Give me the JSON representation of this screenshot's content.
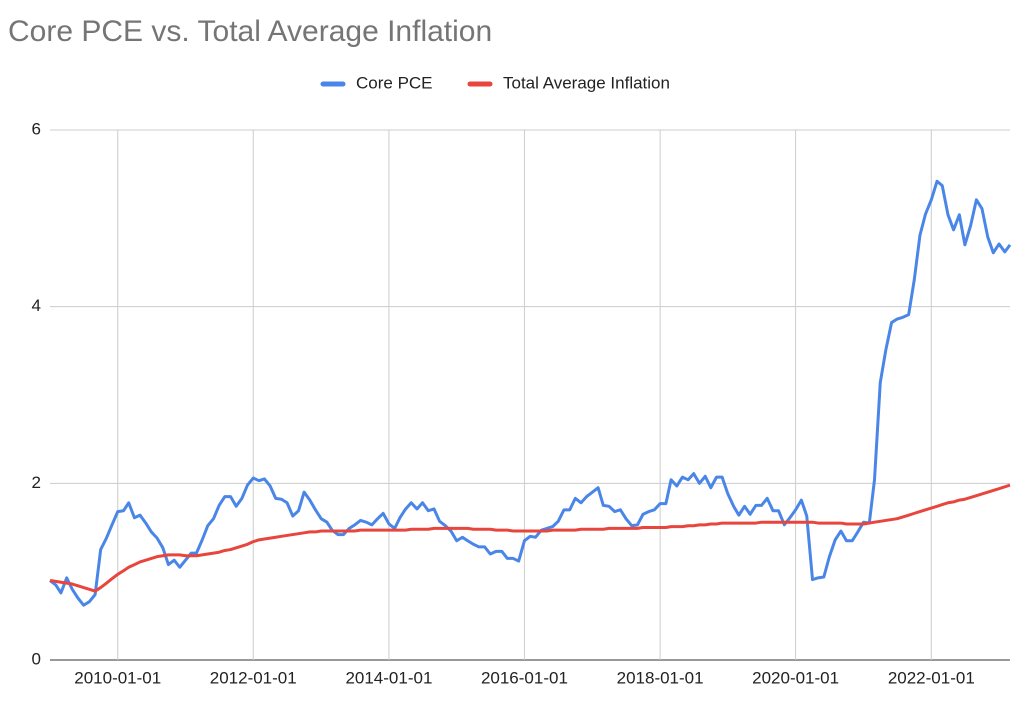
{
  "chart_data": {
    "type": "line",
    "title": "Core PCE vs. Total Average Inflation",
    "x": [
      "2009-01-01",
      "2009-02-01",
      "2009-03-01",
      "2009-04-01",
      "2009-05-01",
      "2009-06-01",
      "2009-07-01",
      "2009-08-01",
      "2009-09-01",
      "2009-10-01",
      "2009-11-01",
      "2009-12-01",
      "2010-01-01",
      "2010-02-01",
      "2010-03-01",
      "2010-04-01",
      "2010-05-01",
      "2010-06-01",
      "2010-07-01",
      "2010-08-01",
      "2010-09-01",
      "2010-10-01",
      "2010-11-01",
      "2010-12-01",
      "2011-01-01",
      "2011-02-01",
      "2011-03-01",
      "2011-04-01",
      "2011-05-01",
      "2011-06-01",
      "2011-07-01",
      "2011-08-01",
      "2011-09-01",
      "2011-10-01",
      "2011-11-01",
      "2011-12-01",
      "2012-01-01",
      "2012-02-01",
      "2012-03-01",
      "2012-04-01",
      "2012-05-01",
      "2012-06-01",
      "2012-07-01",
      "2012-08-01",
      "2012-09-01",
      "2012-10-01",
      "2012-11-01",
      "2012-12-01",
      "2013-01-01",
      "2013-02-01",
      "2013-03-01",
      "2013-04-01",
      "2013-05-01",
      "2013-06-01",
      "2013-07-01",
      "2013-08-01",
      "2013-09-01",
      "2013-10-01",
      "2013-11-01",
      "2013-12-01",
      "2014-01-01",
      "2014-02-01",
      "2014-03-01",
      "2014-04-01",
      "2014-05-01",
      "2014-06-01",
      "2014-07-01",
      "2014-08-01",
      "2014-09-01",
      "2014-10-01",
      "2014-11-01",
      "2014-12-01",
      "2015-01-01",
      "2015-02-01",
      "2015-03-01",
      "2015-04-01",
      "2015-05-01",
      "2015-06-01",
      "2015-07-01",
      "2015-08-01",
      "2015-09-01",
      "2015-10-01",
      "2015-11-01",
      "2015-12-01",
      "2016-01-01",
      "2016-02-01",
      "2016-03-01",
      "2016-04-01",
      "2016-05-01",
      "2016-06-01",
      "2016-07-01",
      "2016-08-01",
      "2016-09-01",
      "2016-10-01",
      "2016-11-01",
      "2016-12-01",
      "2017-01-01",
      "2017-02-01",
      "2017-03-01",
      "2017-04-01",
      "2017-05-01",
      "2017-06-01",
      "2017-07-01",
      "2017-08-01",
      "2017-09-01",
      "2017-10-01",
      "2017-11-01",
      "2017-12-01",
      "2018-01-01",
      "2018-02-01",
      "2018-03-01",
      "2018-04-01",
      "2018-05-01",
      "2018-06-01",
      "2018-07-01",
      "2018-08-01",
      "2018-09-01",
      "2018-10-01",
      "2018-11-01",
      "2018-12-01",
      "2019-01-01",
      "2019-02-01",
      "2019-03-01",
      "2019-04-01",
      "2019-05-01",
      "2019-06-01",
      "2019-07-01",
      "2019-08-01",
      "2019-09-01",
      "2019-10-01",
      "2019-11-01",
      "2019-12-01",
      "2020-01-01",
      "2020-02-01",
      "2020-03-01",
      "2020-04-01",
      "2020-05-01",
      "2020-06-01",
      "2020-07-01",
      "2020-08-01",
      "2020-09-01",
      "2020-10-01",
      "2020-11-01",
      "2020-12-01",
      "2021-01-01",
      "2021-02-01",
      "2021-03-01",
      "2021-04-01",
      "2021-05-01",
      "2021-06-01",
      "2021-07-01",
      "2021-08-01",
      "2021-09-01",
      "2021-10-01",
      "2021-11-01",
      "2021-12-01",
      "2022-01-01",
      "2022-02-01",
      "2022-03-01",
      "2022-04-01",
      "2022-05-01",
      "2022-06-01",
      "2022-07-01",
      "2022-08-01",
      "2022-09-01",
      "2022-10-01",
      "2022-11-01",
      "2022-12-01",
      "2023-01-01",
      "2023-02-01",
      "2023-03-01"
    ],
    "series": [
      {
        "name": "Core PCE",
        "color": "#4a86e8",
        "values": [
          0.9,
          0.85,
          0.76,
          0.93,
          0.8,
          0.7,
          0.62,
          0.66,
          0.74,
          1.25,
          1.38,
          1.53,
          1.68,
          1.69,
          1.78,
          1.61,
          1.64,
          1.55,
          1.45,
          1.38,
          1.27,
          1.08,
          1.13,
          1.05,
          1.13,
          1.21,
          1.21,
          1.36,
          1.52,
          1.6,
          1.75,
          1.85,
          1.85,
          1.74,
          1.83,
          1.98,
          2.06,
          2.03,
          2.05,
          1.97,
          1.83,
          1.82,
          1.78,
          1.63,
          1.69,
          1.9,
          1.81,
          1.7,
          1.6,
          1.56,
          1.47,
          1.42,
          1.42,
          1.49,
          1.53,
          1.58,
          1.56,
          1.53,
          1.6,
          1.66,
          1.54,
          1.49,
          1.61,
          1.71,
          1.78,
          1.71,
          1.78,
          1.69,
          1.71,
          1.57,
          1.52,
          1.46,
          1.35,
          1.39,
          1.35,
          1.31,
          1.28,
          1.28,
          1.2,
          1.23,
          1.23,
          1.15,
          1.15,
          1.12,
          1.35,
          1.4,
          1.39,
          1.47,
          1.49,
          1.51,
          1.57,
          1.7,
          1.7,
          1.83,
          1.78,
          1.85,
          1.9,
          1.95,
          1.75,
          1.74,
          1.68,
          1.7,
          1.6,
          1.52,
          1.53,
          1.65,
          1.68,
          1.7,
          1.77,
          1.77,
          2.04,
          1.97,
          2.07,
          2.04,
          2.11,
          2.0,
          2.08,
          1.95,
          2.07,
          2.07,
          1.88,
          1.74,
          1.64,
          1.74,
          1.65,
          1.75,
          1.75,
          1.83,
          1.69,
          1.69,
          1.53,
          1.61,
          1.7,
          1.81,
          1.63,
          0.91,
          0.93,
          0.94,
          1.17,
          1.36,
          1.46,
          1.35,
          1.35,
          1.45,
          1.56,
          1.55,
          2.04,
          3.14,
          3.51,
          3.82,
          3.86,
          3.88,
          3.91,
          4.3,
          4.81,
          5.05,
          5.21,
          5.42,
          5.37,
          5.04,
          4.87,
          5.04,
          4.7,
          4.92,
          5.21,
          5.11,
          4.79,
          4.61,
          4.71,
          4.62,
          4.7
        ]
      },
      {
        "name": "Total Average Inflation",
        "color": "#e8453c",
        "values": [
          0.9,
          0.89,
          0.88,
          0.87,
          0.86,
          0.84,
          0.82,
          0.8,
          0.78,
          0.82,
          0.87,
          0.92,
          0.97,
          1.01,
          1.05,
          1.08,
          1.11,
          1.13,
          1.15,
          1.17,
          1.18,
          1.19,
          1.19,
          1.19,
          1.18,
          1.18,
          1.18,
          1.19,
          1.2,
          1.21,
          1.22,
          1.24,
          1.25,
          1.27,
          1.29,
          1.31,
          1.34,
          1.36,
          1.37,
          1.38,
          1.39,
          1.4,
          1.41,
          1.42,
          1.43,
          1.44,
          1.45,
          1.45,
          1.46,
          1.46,
          1.46,
          1.46,
          1.46,
          1.46,
          1.46,
          1.47,
          1.47,
          1.47,
          1.47,
          1.47,
          1.47,
          1.47,
          1.47,
          1.47,
          1.48,
          1.48,
          1.48,
          1.48,
          1.49,
          1.49,
          1.49,
          1.49,
          1.49,
          1.49,
          1.49,
          1.48,
          1.48,
          1.48,
          1.48,
          1.47,
          1.47,
          1.47,
          1.46,
          1.46,
          1.46,
          1.46,
          1.46,
          1.46,
          1.46,
          1.47,
          1.47,
          1.47,
          1.47,
          1.47,
          1.48,
          1.48,
          1.48,
          1.48,
          1.48,
          1.49,
          1.49,
          1.49,
          1.49,
          1.49,
          1.49,
          1.5,
          1.5,
          1.5,
          1.5,
          1.5,
          1.51,
          1.51,
          1.51,
          1.52,
          1.52,
          1.53,
          1.53,
          1.54,
          1.54,
          1.55,
          1.55,
          1.55,
          1.55,
          1.55,
          1.55,
          1.55,
          1.56,
          1.56,
          1.56,
          1.56,
          1.56,
          1.56,
          1.56,
          1.56,
          1.56,
          1.56,
          1.55,
          1.55,
          1.55,
          1.55,
          1.55,
          1.54,
          1.54,
          1.54,
          1.54,
          1.55,
          1.56,
          1.57,
          1.58,
          1.59,
          1.6,
          1.62,
          1.64,
          1.66,
          1.68,
          1.7,
          1.72,
          1.74,
          1.76,
          1.78,
          1.79,
          1.81,
          1.82,
          1.84,
          1.86,
          1.88,
          1.9,
          1.92,
          1.94,
          1.96,
          1.98
        ]
      }
    ],
    "xlim": [
      "2009-01-01",
      "2023-03-01"
    ],
    "xticks": [
      "2010-01-01",
      "2012-01-01",
      "2014-01-01",
      "2016-01-01",
      "2018-01-01",
      "2020-01-01",
      "2022-01-01"
    ],
    "ylim": [
      0,
      6
    ],
    "yticks": [
      0,
      2,
      4,
      6
    ],
    "grid": true,
    "legend": "top"
  }
}
